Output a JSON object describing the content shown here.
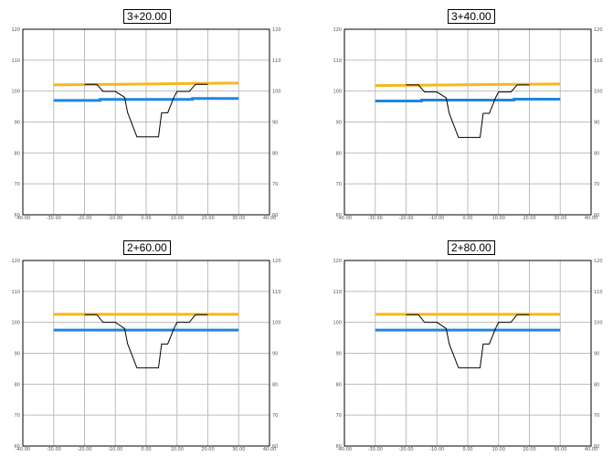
{
  "chart_data": [
    {
      "type": "line",
      "title": "3+20.00",
      "xlim": [
        -40,
        40
      ],
      "ylim": [
        60,
        120
      ],
      "x_ticks": [
        -40,
        -30,
        -20,
        -10,
        0,
        10,
        20,
        30,
        40
      ],
      "y_ticks": [
        60,
        70,
        80,
        90,
        100,
        110,
        120
      ],
      "x_tick_labels": [
        "-40.00",
        "-30.00",
        "-20.00",
        "-10.00",
        "0.00",
        "10.00",
        "20.00",
        "30.00",
        "40.00"
      ],
      "y_tick_labels": [
        "60",
        "70",
        "80",
        "90",
        "100",
        "110",
        "120"
      ],
      "grid": true,
      "series": [
        {
          "color": "#f5b81c",
          "x": [
            -30,
            30
          ],
          "y": [
            102.0,
            102.6
          ]
        },
        {
          "color": "#1f86e0",
          "x": [
            -30,
            -15,
            -15,
            15,
            15,
            30
          ],
          "y": [
            97.0,
            97.0,
            97.3,
            97.3,
            97.6,
            97.6
          ]
        },
        {
          "color": "#000000",
          "x": [
            -20,
            -16,
            -14,
            -10,
            -7,
            -6,
            -3,
            4,
            5,
            7,
            9,
            10,
            14,
            16,
            20
          ],
          "y": [
            102.2,
            102.2,
            99.9,
            99.9,
            98.0,
            93.0,
            85.2,
            85.2,
            93.0,
            93.0,
            98.0,
            99.9,
            99.9,
            102.2,
            102.2
          ]
        }
      ]
    },
    {
      "type": "line",
      "title": "3+40.00",
      "xlim": [
        -40,
        40
      ],
      "ylim": [
        60,
        120
      ],
      "x_ticks": [
        -40,
        -30,
        -20,
        -10,
        0,
        10,
        20,
        30,
        40
      ],
      "y_ticks": [
        60,
        70,
        80,
        90,
        100,
        110,
        120
      ],
      "x_tick_labels": [
        "-40.00",
        "-30.00",
        "-20.00",
        "-10.00",
        "0.00",
        "10.00",
        "20.00",
        "30.00",
        "40.00"
      ],
      "y_tick_labels": [
        "60",
        "70",
        "80",
        "90",
        "100",
        "110",
        "120"
      ],
      "grid": true,
      "series": [
        {
          "color": "#f5b81c",
          "x": [
            -30,
            30
          ],
          "y": [
            101.8,
            102.3
          ]
        },
        {
          "color": "#1f86e0",
          "x": [
            -30,
            -15,
            -15,
            15,
            15,
            30
          ],
          "y": [
            96.8,
            96.8,
            97.1,
            97.1,
            97.4,
            97.4
          ]
        },
        {
          "color": "#000000",
          "x": [
            -20,
            -16,
            -14,
            -10,
            -7,
            -6,
            -3,
            4,
            5,
            7,
            9,
            10,
            14,
            16,
            20
          ],
          "y": [
            102.0,
            102.0,
            99.7,
            99.7,
            97.8,
            92.8,
            85.0,
            85.0,
            92.8,
            92.8,
            97.8,
            99.7,
            99.7,
            102.0,
            102.0
          ]
        }
      ]
    },
    {
      "type": "line",
      "title": "2+60.00",
      "xlim": [
        -40,
        40
      ],
      "ylim": [
        60,
        120
      ],
      "x_ticks": [
        -40,
        -30,
        -20,
        -10,
        0,
        10,
        20,
        30,
        40
      ],
      "y_ticks": [
        60,
        70,
        80,
        90,
        100,
        110,
        120
      ],
      "x_tick_labels": [
        "-40.00",
        "-30.00",
        "-20.00",
        "-10.00",
        "0.00",
        "10.00",
        "20.00",
        "30.00",
        "40.00"
      ],
      "y_tick_labels": [
        "60",
        "70",
        "80",
        "90",
        "100",
        "110",
        "120"
      ],
      "grid": true,
      "series": [
        {
          "color": "#f5b81c",
          "x": [
            -30,
            30
          ],
          "y": [
            102.6,
            102.6
          ]
        },
        {
          "color": "#1f86e0",
          "x": [
            -30,
            30
          ],
          "y": [
            97.5,
            97.5
          ]
        },
        {
          "color": "#000000",
          "x": [
            -20,
            -16,
            -14,
            -10,
            -7,
            -6,
            -3,
            4,
            5,
            7,
            9,
            10,
            14,
            16,
            20
          ],
          "y": [
            102.5,
            102.5,
            100.0,
            100.0,
            98.0,
            93.0,
            85.3,
            85.3,
            93.0,
            93.0,
            98.0,
            100.0,
            100.0,
            102.5,
            102.5
          ]
        }
      ]
    },
    {
      "type": "line",
      "title": "2+80.00",
      "xlim": [
        -40,
        40
      ],
      "ylim": [
        60,
        120
      ],
      "x_ticks": [
        -40,
        -30,
        -20,
        -10,
        0,
        10,
        20,
        30,
        40
      ],
      "y_ticks": [
        60,
        70,
        80,
        90,
        100,
        110,
        120
      ],
      "x_tick_labels": [
        "-40.00",
        "-30.00",
        "-20.00",
        "-10.00",
        "0.00",
        "10.00",
        "20.00",
        "30.00",
        "40.00"
      ],
      "y_tick_labels": [
        "60",
        "70",
        "80",
        "90",
        "100",
        "110",
        "120"
      ],
      "grid": true,
      "series": [
        {
          "color": "#f5b81c",
          "x": [
            -30,
            30
          ],
          "y": [
            102.6,
            102.6
          ]
        },
        {
          "color": "#1f86e0",
          "x": [
            -30,
            30
          ],
          "y": [
            97.5,
            97.5
          ]
        },
        {
          "color": "#000000",
          "x": [
            -20,
            -16,
            -14,
            -10,
            -7,
            -6,
            -3,
            4,
            5,
            7,
            9,
            10,
            14,
            16,
            20
          ],
          "y": [
            102.5,
            102.5,
            100.0,
            100.0,
            98.0,
            93.0,
            85.3,
            85.3,
            93.0,
            93.0,
            98.0,
            100.0,
            100.0,
            102.5,
            102.5
          ]
        }
      ]
    }
  ]
}
